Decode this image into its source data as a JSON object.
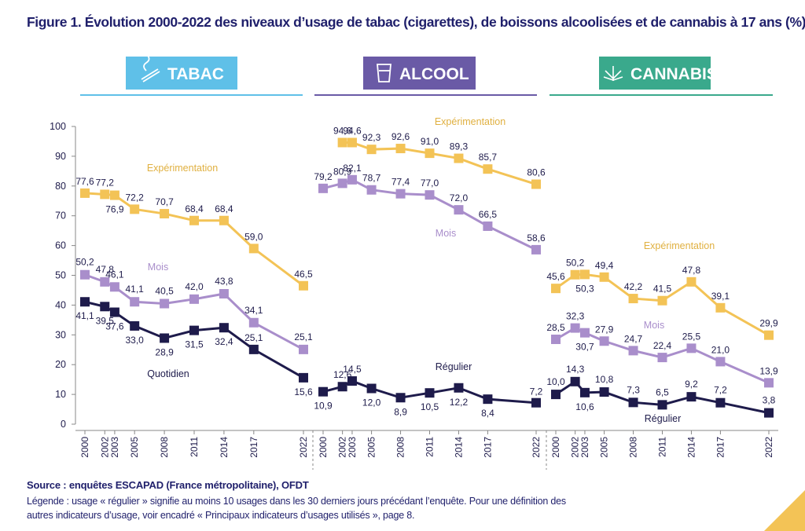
{
  "title": "Figure 1. Évolution 2000-2022 des niveaux d’usage de tabac (cigarettes), de boissons alcoolisées et de cannabis à 17 ans (%)",
  "source": "Source : enquêtes ESCAPAD (France métropolitaine), OFDT",
  "legend_note_line1": "Légende : usage « régulier » signifie au moins 10 usages dans les 30 derniers jours précédant l’enquête. Pour une définition des",
  "legend_note_line2": "autres indicateurs d’usage, voir encadré « Principaux indicateurs d’usages utilisés », page 8.",
  "colors": {
    "experimentation": "#f3c356",
    "mois": "#a98ecb",
    "quotidien": "#1e1b4b",
    "tabac": "#5fc0e8",
    "alcool": "#6a5aa6",
    "cannabis": "#3aa98c"
  },
  "chart_data": [
    {
      "type": "line",
      "panel": "TABAC",
      "icon": "cigarette-icon",
      "x": [
        "2000",
        "2002",
        "2003",
        "2005",
        "2008",
        "2011",
        "2014",
        "2017",
        "2022"
      ],
      "ylim": [
        0,
        100
      ],
      "yticks": [
        "0",
        "10",
        "20",
        "30",
        "40",
        "50",
        "60",
        "70",
        "80",
        "90",
        "100"
      ],
      "series": [
        {
          "name": "Expérimentation",
          "values": [
            77.6,
            77.2,
            76.9,
            72.2,
            70.7,
            68.4,
            68.4,
            59.0,
            46.5
          ],
          "labels": [
            "77,6",
            "77,2",
            "76,9",
            "72,2",
            "70,7",
            "68,4",
            "68,4",
            "59,0",
            "46,5"
          ]
        },
        {
          "name": "Mois",
          "values": [
            50.2,
            47.8,
            46.1,
            41.1,
            40.5,
            42.0,
            43.8,
            34.1,
            25.1
          ],
          "labels": [
            "50,2",
            "47,8",
            "46,1",
            "41,1",
            "40,5",
            "42,0",
            "43,8",
            "34,1",
            "25,1"
          ]
        },
        {
          "name": "Quotidien",
          "values": [
            41.1,
            39.5,
            37.6,
            33.0,
            28.9,
            31.5,
            32.4,
            25.1,
            15.6
          ],
          "labels": [
            "41,1",
            "39,5",
            "37,6",
            "33,0",
            "28,9",
            "31,5",
            "32,4",
            "25,1",
            "15,6"
          ]
        }
      ]
    },
    {
      "type": "line",
      "panel": "ALCOOL",
      "icon": "glass-icon",
      "x": [
        "2000",
        "2002",
        "2003",
        "2005",
        "2008",
        "2011",
        "2014",
        "2017",
        "2022"
      ],
      "ylim": [
        0,
        100
      ],
      "series": [
        {
          "name": "Expérimentation",
          "values": [
            null,
            94.6,
            94.6,
            92.3,
            92.6,
            91.0,
            89.3,
            85.7,
            80.6
          ],
          "labels": [
            "",
            "94,6",
            "94,6",
            "92,3",
            "92,6",
            "91,0",
            "89,3",
            "85,7",
            "80,6"
          ]
        },
        {
          "name": "Mois",
          "values": [
            79.2,
            80.9,
            82.1,
            78.7,
            77.4,
            77.0,
            72.0,
            66.5,
            58.6
          ],
          "labels": [
            "79,2",
            "80,9",
            "82,1",
            "78,7",
            "77,4",
            "77,0",
            "72,0",
            "66,5",
            "58,6"
          ]
        },
        {
          "name": "Régulier",
          "values": [
            10.9,
            12.6,
            14.5,
            12.0,
            8.9,
            10.5,
            12.2,
            8.4,
            7.2
          ],
          "labels": [
            "10,9",
            "12,6",
            "14,5",
            "12,0",
            "8,9",
            "10,5",
            "12,2",
            "8,4",
            "7,2"
          ]
        }
      ]
    },
    {
      "type": "line",
      "panel": "CANNABIS",
      "icon": "cannabis-leaf-icon",
      "x": [
        "2000",
        "2002",
        "2003",
        "2005",
        "2008",
        "2011",
        "2014",
        "2017",
        "2022"
      ],
      "ylim": [
        0,
        100
      ],
      "series": [
        {
          "name": "Expérimentation",
          "values": [
            45.6,
            50.2,
            50.3,
            49.4,
            42.2,
            41.5,
            47.8,
            39.1,
            29.9
          ],
          "labels": [
            "45,6",
            "50,2",
            "50,3",
            "49,4",
            "42,2",
            "41,5",
            "47,8",
            "39,1",
            "29,9"
          ]
        },
        {
          "name": "Mois",
          "values": [
            28.5,
            32.3,
            30.7,
            27.9,
            24.7,
            22.4,
            25.5,
            21.0,
            13.9
          ],
          "labels": [
            "28,5",
            "32,3",
            "30,7",
            "27,9",
            "24,7",
            "22,4",
            "25,5",
            "21,0",
            "13,9"
          ]
        },
        {
          "name": "Régulier",
          "values": [
            10.0,
            14.3,
            10.6,
            10.8,
            7.3,
            6.5,
            9.2,
            7.2,
            3.8
          ],
          "labels": [
            "10,0",
            "14,3",
            "10,6",
            "10,8",
            "7,3",
            "6,5",
            "9,2",
            "7,2",
            "3,8"
          ]
        }
      ]
    }
  ]
}
